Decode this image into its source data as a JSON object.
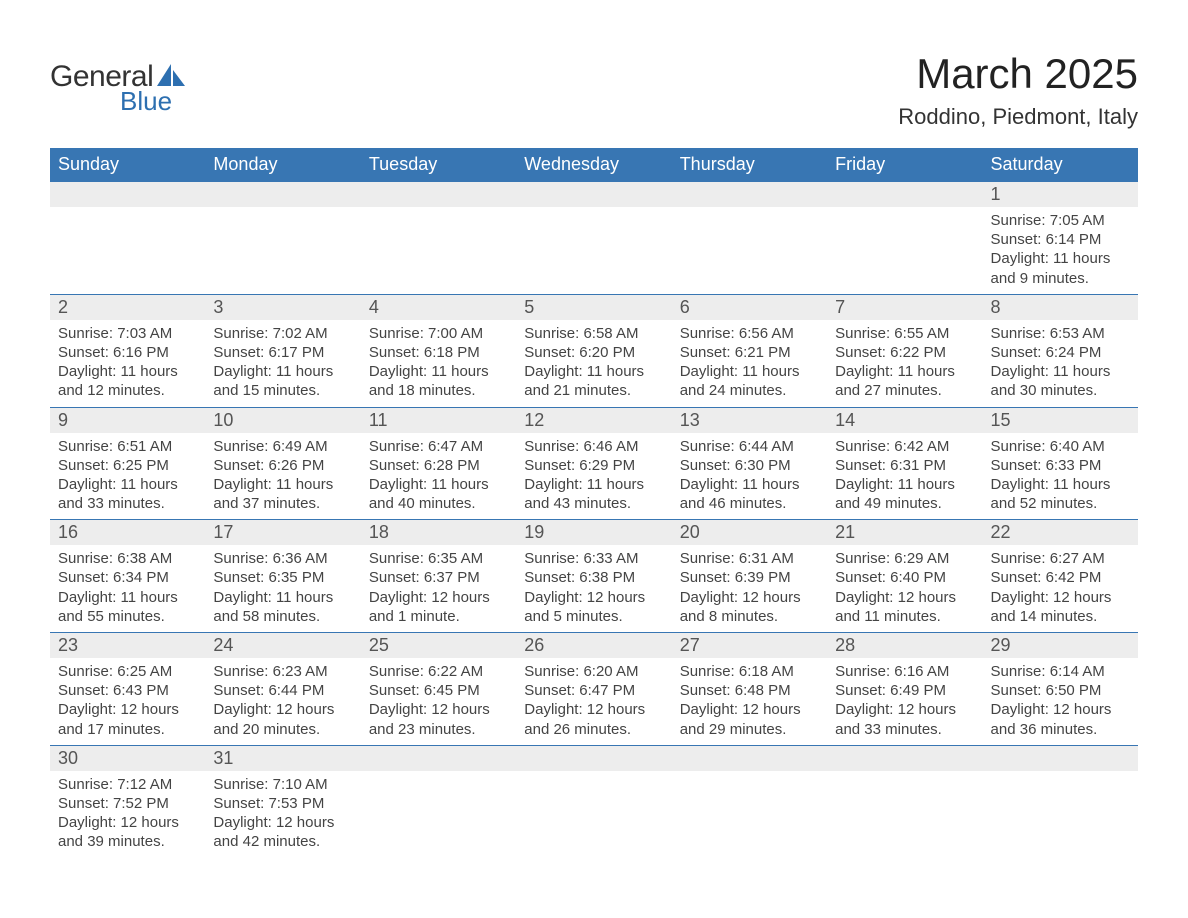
{
  "brand": {
    "word1": "General",
    "word2": "Blue",
    "accent_color": "#2d6fb0"
  },
  "title": "March 2025",
  "location": "Roddino, Piedmont, Italy",
  "header_bg": "#3876b3",
  "header_fg": "#ffffff",
  "daynum_bg": "#ededed",
  "text_color": "#444444",
  "border_color": "#3876b3",
  "columns": [
    "Sunday",
    "Monday",
    "Tuesday",
    "Wednesday",
    "Thursday",
    "Friday",
    "Saturday"
  ],
  "weeks": [
    [
      null,
      null,
      null,
      null,
      null,
      null,
      {
        "n": "1",
        "sunrise": "7:05 AM",
        "sunset": "6:14 PM",
        "daylight": "11 hours and 9 minutes."
      }
    ],
    [
      {
        "n": "2",
        "sunrise": "7:03 AM",
        "sunset": "6:16 PM",
        "daylight": "11 hours and 12 minutes."
      },
      {
        "n": "3",
        "sunrise": "7:02 AM",
        "sunset": "6:17 PM",
        "daylight": "11 hours and 15 minutes."
      },
      {
        "n": "4",
        "sunrise": "7:00 AM",
        "sunset": "6:18 PM",
        "daylight": "11 hours and 18 minutes."
      },
      {
        "n": "5",
        "sunrise": "6:58 AM",
        "sunset": "6:20 PM",
        "daylight": "11 hours and 21 minutes."
      },
      {
        "n": "6",
        "sunrise": "6:56 AM",
        "sunset": "6:21 PM",
        "daylight": "11 hours and 24 minutes."
      },
      {
        "n": "7",
        "sunrise": "6:55 AM",
        "sunset": "6:22 PM",
        "daylight": "11 hours and 27 minutes."
      },
      {
        "n": "8",
        "sunrise": "6:53 AM",
        "sunset": "6:24 PM",
        "daylight": "11 hours and 30 minutes."
      }
    ],
    [
      {
        "n": "9",
        "sunrise": "6:51 AM",
        "sunset": "6:25 PM",
        "daylight": "11 hours and 33 minutes."
      },
      {
        "n": "10",
        "sunrise": "6:49 AM",
        "sunset": "6:26 PM",
        "daylight": "11 hours and 37 minutes."
      },
      {
        "n": "11",
        "sunrise": "6:47 AM",
        "sunset": "6:28 PM",
        "daylight": "11 hours and 40 minutes."
      },
      {
        "n": "12",
        "sunrise": "6:46 AM",
        "sunset": "6:29 PM",
        "daylight": "11 hours and 43 minutes."
      },
      {
        "n": "13",
        "sunrise": "6:44 AM",
        "sunset": "6:30 PM",
        "daylight": "11 hours and 46 minutes."
      },
      {
        "n": "14",
        "sunrise": "6:42 AM",
        "sunset": "6:31 PM",
        "daylight": "11 hours and 49 minutes."
      },
      {
        "n": "15",
        "sunrise": "6:40 AM",
        "sunset": "6:33 PM",
        "daylight": "11 hours and 52 minutes."
      }
    ],
    [
      {
        "n": "16",
        "sunrise": "6:38 AM",
        "sunset": "6:34 PM",
        "daylight": "11 hours and 55 minutes."
      },
      {
        "n": "17",
        "sunrise": "6:36 AM",
        "sunset": "6:35 PM",
        "daylight": "11 hours and 58 minutes."
      },
      {
        "n": "18",
        "sunrise": "6:35 AM",
        "sunset": "6:37 PM",
        "daylight": "12 hours and 1 minute."
      },
      {
        "n": "19",
        "sunrise": "6:33 AM",
        "sunset": "6:38 PM",
        "daylight": "12 hours and 5 minutes."
      },
      {
        "n": "20",
        "sunrise": "6:31 AM",
        "sunset": "6:39 PM",
        "daylight": "12 hours and 8 minutes."
      },
      {
        "n": "21",
        "sunrise": "6:29 AM",
        "sunset": "6:40 PM",
        "daylight": "12 hours and 11 minutes."
      },
      {
        "n": "22",
        "sunrise": "6:27 AM",
        "sunset": "6:42 PM",
        "daylight": "12 hours and 14 minutes."
      }
    ],
    [
      {
        "n": "23",
        "sunrise": "6:25 AM",
        "sunset": "6:43 PM",
        "daylight": "12 hours and 17 minutes."
      },
      {
        "n": "24",
        "sunrise": "6:23 AM",
        "sunset": "6:44 PM",
        "daylight": "12 hours and 20 minutes."
      },
      {
        "n": "25",
        "sunrise": "6:22 AM",
        "sunset": "6:45 PM",
        "daylight": "12 hours and 23 minutes."
      },
      {
        "n": "26",
        "sunrise": "6:20 AM",
        "sunset": "6:47 PM",
        "daylight": "12 hours and 26 minutes."
      },
      {
        "n": "27",
        "sunrise": "6:18 AM",
        "sunset": "6:48 PM",
        "daylight": "12 hours and 29 minutes."
      },
      {
        "n": "28",
        "sunrise": "6:16 AM",
        "sunset": "6:49 PM",
        "daylight": "12 hours and 33 minutes."
      },
      {
        "n": "29",
        "sunrise": "6:14 AM",
        "sunset": "6:50 PM",
        "daylight": "12 hours and 36 minutes."
      }
    ],
    [
      {
        "n": "30",
        "sunrise": "7:12 AM",
        "sunset": "7:52 PM",
        "daylight": "12 hours and 39 minutes."
      },
      {
        "n": "31",
        "sunrise": "7:10 AM",
        "sunset": "7:53 PM",
        "daylight": "12 hours and 42 minutes."
      },
      null,
      null,
      null,
      null,
      null
    ]
  ],
  "labels": {
    "sunrise": "Sunrise: ",
    "sunset": "Sunset: ",
    "daylight": "Daylight: "
  }
}
